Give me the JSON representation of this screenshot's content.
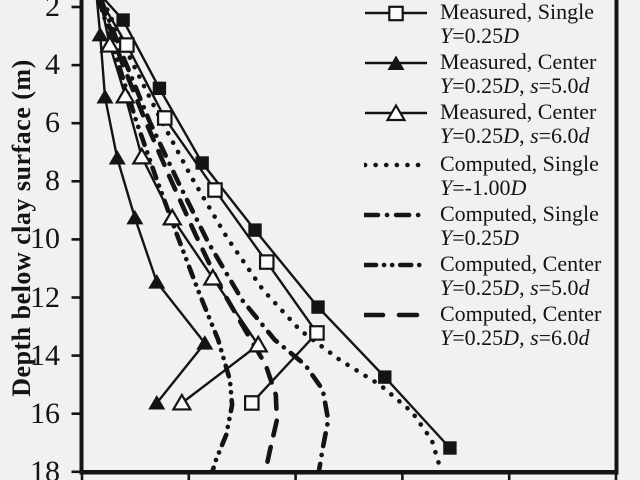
{
  "page": {
    "background": "#f1f1ef",
    "ink": "#141414",
    "marker_fill": "#fbfbfa"
  },
  "chart_data": {
    "type": "line",
    "title": "",
    "ylabel": "Depth below clay surface (m)",
    "y_axis": {
      "title": "Depth below clay surface (m)",
      "ticks": [
        2,
        4,
        6,
        8,
        10,
        12,
        14,
        16,
        18
      ],
      "visible_range": [
        1.75,
        18.3
      ],
      "orientation": "depth increases downward"
    },
    "x_axis": {
      "tick_count": 6,
      "labels_visible": false,
      "note": "x-axis tick labels are cropped out of the screenshot; x given as fraction of axis width",
      "range_units": [
        0,
        1
      ]
    },
    "series": [
      {
        "name": "Computed, Single Y=-1.00D",
        "style": "dotted",
        "marker": "none",
        "points": [
          [
            0.039,
            1.76
          ],
          [
            0.09,
            3.76
          ],
          [
            0.146,
            5.82
          ],
          [
            0.206,
            7.89
          ],
          [
            0.272,
            9.95
          ],
          [
            0.339,
            11.74
          ],
          [
            0.408,
            13.12
          ],
          [
            0.483,
            14.15
          ],
          [
            0.558,
            15.01
          ],
          [
            0.618,
            15.94
          ],
          [
            0.655,
            16.91
          ],
          [
            0.672,
            17.94
          ]
        ]
      },
      {
        "name": "Computed, Single Y=0.25D",
        "style": "dash-dot",
        "marker": "none",
        "points": [
          [
            0.036,
            1.76
          ],
          [
            0.081,
            3.89
          ],
          [
            0.127,
            5.96
          ],
          [
            0.18,
            8.02
          ],
          [
            0.236,
            10.09
          ],
          [
            0.3,
            12.09
          ],
          [
            0.361,
            13.46
          ],
          [
            0.418,
            14.32
          ],
          [
            0.451,
            15.18
          ],
          [
            0.461,
            16.22
          ],
          [
            0.451,
            17.18
          ],
          [
            0.444,
            17.94
          ]
        ]
      },
      {
        "name": "Computed, Center Y=0.25D, s=5.0d",
        "style": "dash-dot-dot",
        "marker": "none",
        "points": [
          [
            0.032,
            1.76
          ],
          [
            0.066,
            3.82
          ],
          [
            0.101,
            5.89
          ],
          [
            0.139,
            7.89
          ],
          [
            0.178,
            9.85
          ],
          [
            0.217,
            11.74
          ],
          [
            0.255,
            13.46
          ],
          [
            0.277,
            14.84
          ],
          [
            0.281,
            15.7
          ],
          [
            0.27,
            16.73
          ],
          [
            0.251,
            17.59
          ],
          [
            0.245,
            17.94
          ]
        ]
      },
      {
        "name": "Computed, Center Y=0.25D, s=6.0d",
        "style": "dashed",
        "marker": "none",
        "points": [
          [
            0.034,
            1.76
          ],
          [
            0.073,
            3.82
          ],
          [
            0.118,
            5.89
          ],
          [
            0.165,
            7.89
          ],
          [
            0.213,
            9.85
          ],
          [
            0.262,
            11.74
          ],
          [
            0.311,
            13.29
          ],
          [
            0.344,
            14.32
          ],
          [
            0.363,
            15.35
          ],
          [
            0.365,
            16.22
          ],
          [
            0.352,
            17.25
          ],
          [
            0.344,
            17.94
          ]
        ]
      },
      {
        "name": "Measured, Single (filled square; legend entry cropped at top)",
        "style": "solid",
        "marker": "filled-square",
        "points": [
          [
            0.043,
            1.76
          ],
          [
            0.077,
            2.45
          ],
          [
            0.145,
            4.8
          ],
          [
            0.225,
            7.37
          ],
          [
            0.324,
            9.68
          ],
          [
            0.442,
            12.33
          ],
          [
            0.567,
            14.74
          ],
          [
            0.689,
            17.18
          ]
        ]
      },
      {
        "name": "Measured, Single Y=0.25D",
        "style": "solid",
        "marker": "open-square",
        "points": [
          [
            0.034,
            1.76
          ],
          [
            0.084,
            3.31
          ],
          [
            0.155,
            5.82
          ],
          [
            0.249,
            8.3
          ],
          [
            0.346,
            10.78
          ],
          [
            0.44,
            13.22
          ],
          [
            0.318,
            15.63
          ]
        ]
      },
      {
        "name": "Measured, Center Y=0.25D, s=5.0d",
        "style": "solid",
        "marker": "filled-triangle",
        "points": [
          [
            0.028,
            1.76
          ],
          [
            0.034,
            2.96
          ],
          [
            0.043,
            5.1
          ],
          [
            0.066,
            7.2
          ],
          [
            0.099,
            9.26
          ],
          [
            0.14,
            11.47
          ],
          [
            0.23,
            13.57
          ],
          [
            0.14,
            15.63
          ]
        ]
      },
      {
        "name": "Measured, Center Y=0.25D, s=6.0d",
        "style": "solid",
        "marker": "open-triangle",
        "points": [
          [
            0.034,
            1.76
          ],
          [
            0.052,
            3.31
          ],
          [
            0.081,
            5.06
          ],
          [
            0.112,
            7.16
          ],
          [
            0.169,
            9.26
          ],
          [
            0.245,
            11.33
          ],
          [
            0.33,
            13.63
          ],
          [
            0.187,
            15.63
          ]
        ]
      }
    ]
  },
  "legend": {
    "items": [
      {
        "line1": "Measured, Single",
        "line2": "Y=0.25D",
        "style": "solid",
        "marker": "open-square"
      },
      {
        "line1": "Measured, Center",
        "line2": "Y=0.25D, s=5.0d",
        "style": "solid",
        "marker": "filled-triangle"
      },
      {
        "line1": "Measured, Center",
        "line2": "Y=0.25D, s=6.0d",
        "style": "solid",
        "marker": "open-triangle"
      },
      {
        "line1": "Computed, Single",
        "line2": "Y=-1.00D",
        "style": "dotted",
        "marker": "none"
      },
      {
        "line1": "Computed, Single",
        "line2": "Y=0.25D",
        "style": "dash-dot",
        "marker": "none"
      },
      {
        "line1": "Computed, Center",
        "line2": "Y=0.25D, s=5.0d",
        "style": "dash-dot-dot",
        "marker": "none"
      },
      {
        "line1": "Computed, Center",
        "line2": "Y=0.25D, s=6.0d",
        "style": "dashed",
        "marker": "none"
      }
    ]
  }
}
